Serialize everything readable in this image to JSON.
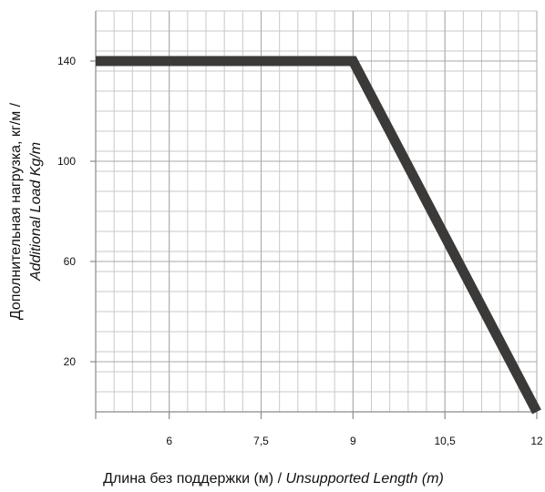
{
  "chart_data": {
    "type": "line",
    "title": "",
    "xlabel": {
      "regular": "Длина без поддержки (м) / ",
      "italic": "Unsupported Length (m)"
    },
    "ylabel": {
      "line1": "Дополнительная нагрузка, кг/м /",
      "line2": "Additional Load Kg/m"
    },
    "xlim": [
      4.8,
      12
    ],
    "ylim": [
      0,
      160
    ],
    "x_ticks": [
      {
        "value": 6,
        "label": "6"
      },
      {
        "value": 7.5,
        "label": "7,5"
      },
      {
        "value": 9,
        "label": "9"
      },
      {
        "value": 10.5,
        "label": "10,5"
      },
      {
        "value": 12,
        "label": "12"
      }
    ],
    "y_ticks": [
      {
        "value": 20,
        "label": "20"
      },
      {
        "value": 60,
        "label": "60"
      },
      {
        "value": 100,
        "label": "100"
      },
      {
        "value": 140,
        "label": "140"
      }
    ],
    "grid": true,
    "grid_minor_step_x": 0.3,
    "grid_minor_step_y": 8,
    "legend": "none",
    "series": [
      {
        "color": "#3c3a38",
        "points": [
          {
            "x": 4.8,
            "y": 140
          },
          {
            "x": 9,
            "y": 140
          },
          {
            "x": 12,
            "y": 0
          }
        ]
      }
    ]
  }
}
